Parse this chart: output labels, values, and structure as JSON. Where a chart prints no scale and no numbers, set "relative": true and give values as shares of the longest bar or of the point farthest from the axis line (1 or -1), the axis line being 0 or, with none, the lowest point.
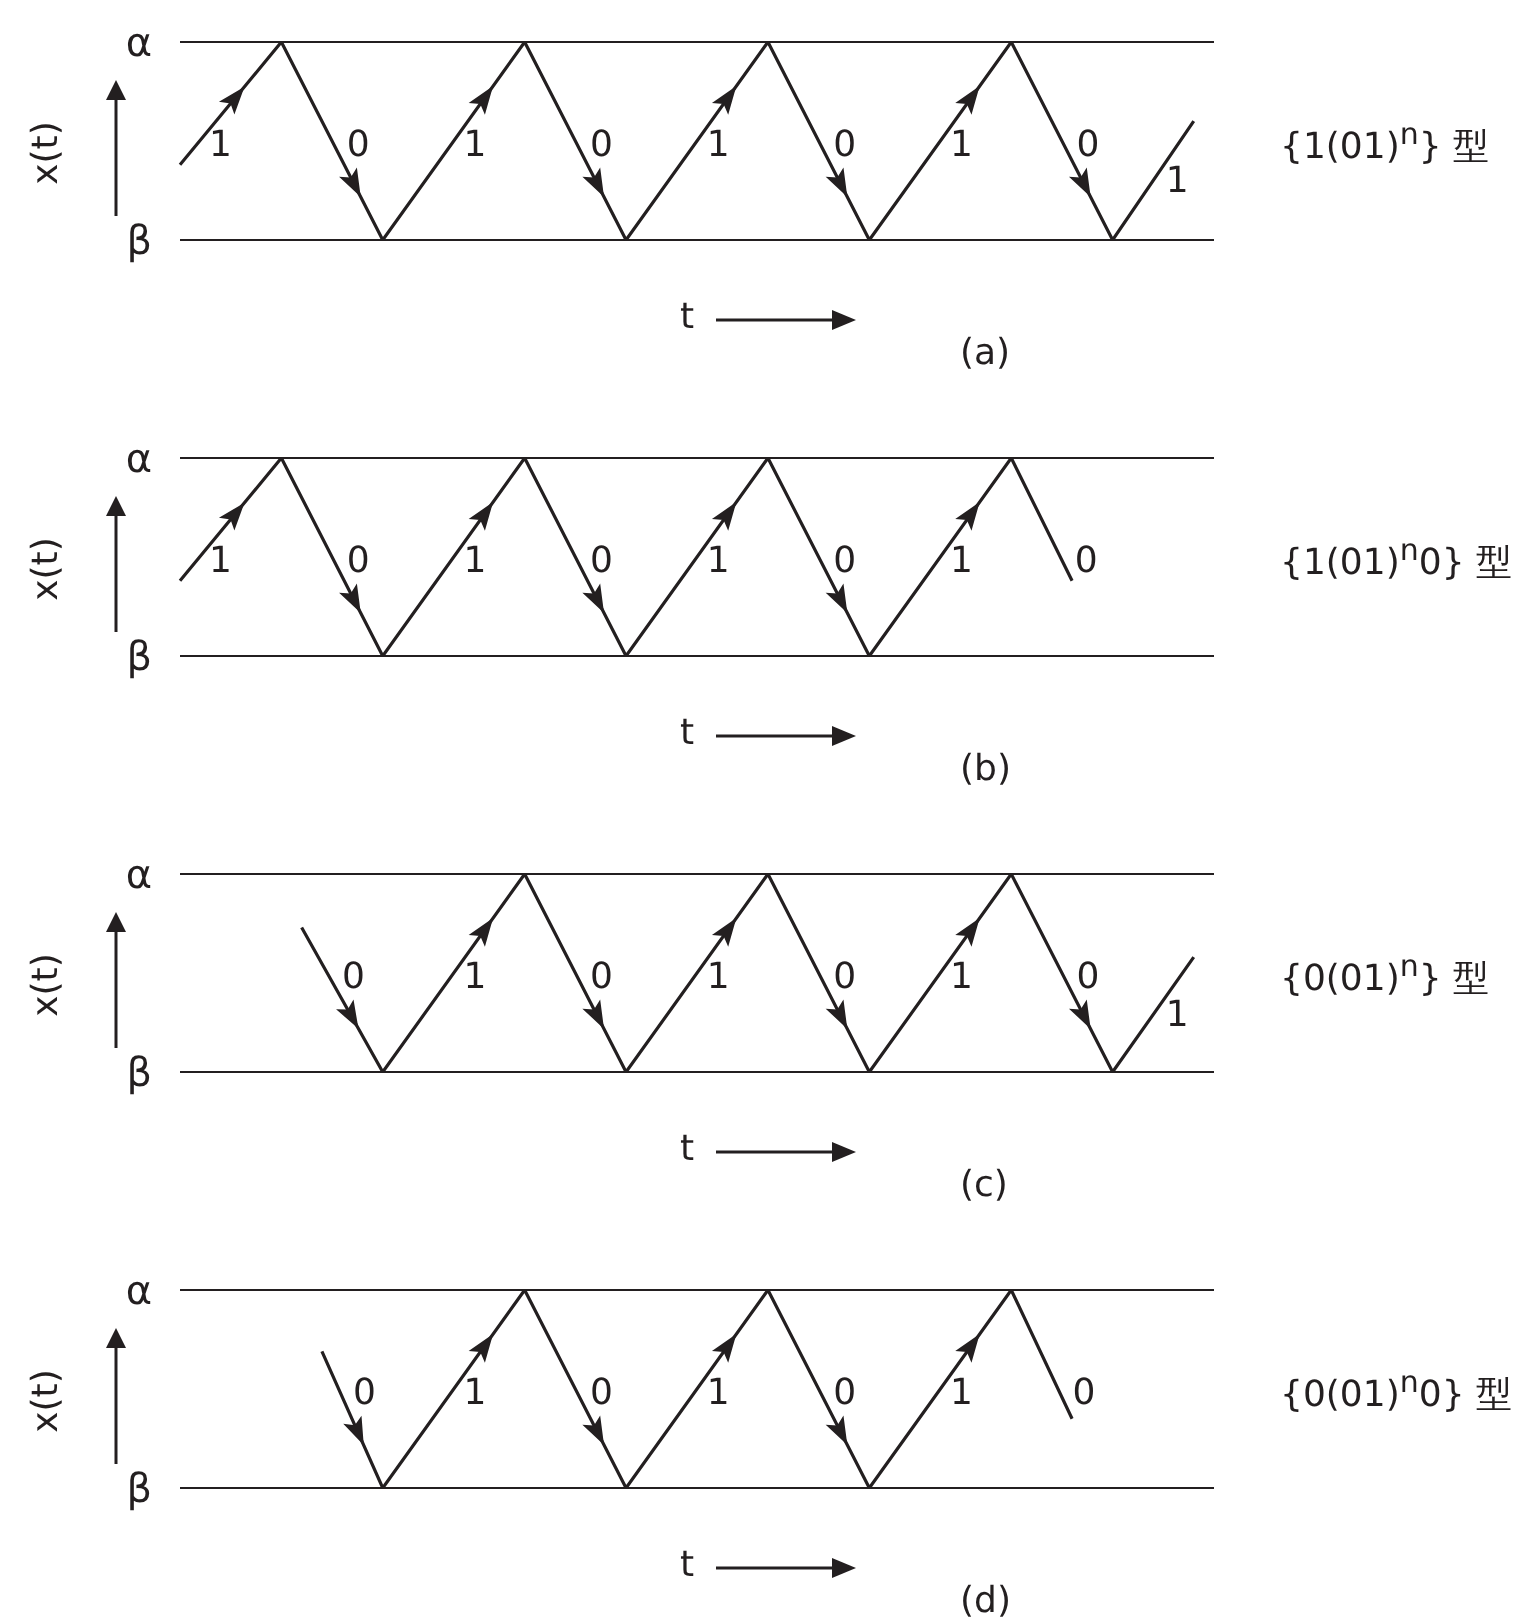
{
  "chart_data": [
    {
      "type": "line",
      "relative": true,
      "title": "(a)",
      "xlabel": "t",
      "ylabel": "x(t)",
      "tick_labels": false,
      "categories": [
        null,
        null,
        null,
        null,
        null,
        null,
        null,
        null,
        null,
        null,
        null,
        null,
        null,
        null,
        null,
        null,
        null,
        null,
        null,
        null,
        null,
        null,
        null,
        null,
        null,
        null,
        null,
        null,
        null,
        null,
        null,
        null,
        null,
        null,
        null,
        null,
        null,
        null,
        null,
        null,
        null,
        null,
        null,
        null,
        null,
        null,
        null,
        null,
        null,
        null,
        null,
        null
      ],
      "series": [
        {
          "color": "#231f20",
          "values": [
            0.38,
            null,
            null,
            null,
            null,
            1,
            null,
            null,
            null,
            null,
            0,
            null,
            null,
            null,
            null,
            null,
            null,
            1,
            null,
            null,
            null,
            null,
            0,
            null,
            null,
            null,
            null,
            null,
            null,
            1,
            null,
            null,
            null,
            null,
            0,
            null,
            null,
            null,
            null,
            null,
            null,
            1,
            null,
            null,
            null,
            null,
            0,
            null,
            null,
            null,
            0.6,
            null
          ]
        }
      ],
      "ref_lines": [
        {
          "axis": "y",
          "value": 1,
          "label": "α",
          "color": "#231f20"
        },
        {
          "axis": "y",
          "value": 0,
          "label": "β",
          "color": "#231f20"
        }
      ],
      "annotations": [
        "1",
        "0",
        "1",
        "0",
        "1",
        "0",
        "1",
        "0",
        "1",
        "{1(01)$^{n}$} 型"
      ]
    },
    {
      "type": "line",
      "relative": true,
      "title": "(b)",
      "xlabel": "t",
      "ylabel": "x(t)",
      "tick_labels": false,
      "categories": [
        null,
        null,
        null,
        null,
        null,
        null,
        null,
        null,
        null,
        null,
        null,
        null,
        null,
        null,
        null,
        null,
        null,
        null,
        null,
        null,
        null,
        null,
        null,
        null,
        null,
        null,
        null,
        null,
        null,
        null,
        null,
        null,
        null,
        null,
        null,
        null,
        null,
        null,
        null,
        null,
        null,
        null,
        null,
        null,
        null,
        null,
        null,
        null,
        null,
        null,
        null,
        null
      ],
      "series": [
        {
          "color": "#231f20",
          "values": [
            0.38,
            null,
            null,
            null,
            null,
            1,
            null,
            null,
            null,
            null,
            0,
            null,
            null,
            null,
            null,
            null,
            null,
            1,
            null,
            null,
            null,
            null,
            0,
            null,
            null,
            null,
            null,
            null,
            null,
            1,
            null,
            null,
            null,
            null,
            0,
            null,
            null,
            null,
            null,
            null,
            null,
            1,
            null,
            null,
            0.38,
            null,
            null,
            null,
            null,
            null,
            null,
            null
          ]
        }
      ],
      "ref_lines": [
        {
          "axis": "y",
          "value": 1,
          "label": "α",
          "color": "#231f20"
        },
        {
          "axis": "y",
          "value": 0,
          "label": "β",
          "color": "#231f20"
        }
      ],
      "annotations": [
        "1",
        "0",
        "1",
        "0",
        "1",
        "0",
        "1",
        "0",
        "{1(01)$^{n}$0} 型"
      ]
    },
    {
      "type": "line",
      "relative": true,
      "title": "(c)",
      "xlabel": "t",
      "ylabel": "x(t)",
      "tick_labels": false,
      "categories": [
        null,
        null,
        null,
        null,
        null,
        null,
        null,
        null,
        null,
        null,
        null,
        null,
        null,
        null,
        null,
        null,
        null,
        null,
        null,
        null,
        null,
        null,
        null,
        null,
        null,
        null,
        null,
        null,
        null,
        null,
        null,
        null,
        null,
        null,
        null,
        null,
        null,
        null,
        null,
        null,
        null,
        null,
        null,
        null,
        null,
        null,
        null,
        null,
        null,
        null,
        null,
        null
      ],
      "series": [
        {
          "color": "#231f20",
          "values": [
            null,
            null,
            null,
            null,
            null,
            null,
            0.73,
            null,
            null,
            null,
            0,
            null,
            null,
            null,
            null,
            null,
            null,
            1,
            null,
            null,
            null,
            null,
            0,
            null,
            null,
            null,
            null,
            null,
            null,
            1,
            null,
            null,
            null,
            null,
            0,
            null,
            null,
            null,
            null,
            null,
            null,
            1,
            null,
            null,
            null,
            null,
            0,
            null,
            null,
            null,
            0.58,
            null
          ]
        }
      ],
      "ref_lines": [
        {
          "axis": "y",
          "value": 1,
          "label": "α",
          "color": "#231f20"
        },
        {
          "axis": "y",
          "value": 0,
          "label": "β",
          "color": "#231f20"
        }
      ],
      "annotations": [
        "0",
        "1",
        "0",
        "1",
        "0",
        "1",
        "0",
        "1",
        "{0(01)$^{n}$} 型"
      ]
    },
    {
      "type": "line",
      "relative": true,
      "title": "(d)",
      "xlabel": "t",
      "ylabel": "x(t)",
      "tick_labels": false,
      "categories": [
        null,
        null,
        null,
        null,
        null,
        null,
        null,
        null,
        null,
        null,
        null,
        null,
        null,
        null,
        null,
        null,
        null,
        null,
        null,
        null,
        null,
        null,
        null,
        null,
        null,
        null,
        null,
        null,
        null,
        null,
        null,
        null,
        null,
        null,
        null,
        null,
        null,
        null,
        null,
        null,
        null,
        null,
        null,
        null,
        null,
        null,
        null,
        null,
        null,
        null,
        null,
        null
      ],
      "series": [
        {
          "color": "#231f20",
          "values": [
            null,
            null,
            null,
            null,
            null,
            null,
            null,
            0.69,
            null,
            null,
            0,
            null,
            null,
            null,
            null,
            null,
            null,
            1,
            null,
            null,
            null,
            null,
            0,
            null,
            null,
            null,
            null,
            null,
            null,
            1,
            null,
            null,
            null,
            null,
            0,
            null,
            null,
            null,
            null,
            null,
            null,
            1,
            null,
            null,
            0.35,
            null,
            null,
            null,
            null,
            null,
            null,
            null
          ]
        }
      ],
      "ref_lines": [
        {
          "axis": "y",
          "value": 1,
          "label": "α",
          "color": "#231f20"
        },
        {
          "axis": "y",
          "value": 0,
          "label": "β",
          "color": "#231f20"
        }
      ],
      "annotations": [
        "0",
        "1",
        "0",
        "1",
        "0",
        "1",
        "0",
        "{0(01)$^{n}$0} 型"
      ]
    }
  ]
}
